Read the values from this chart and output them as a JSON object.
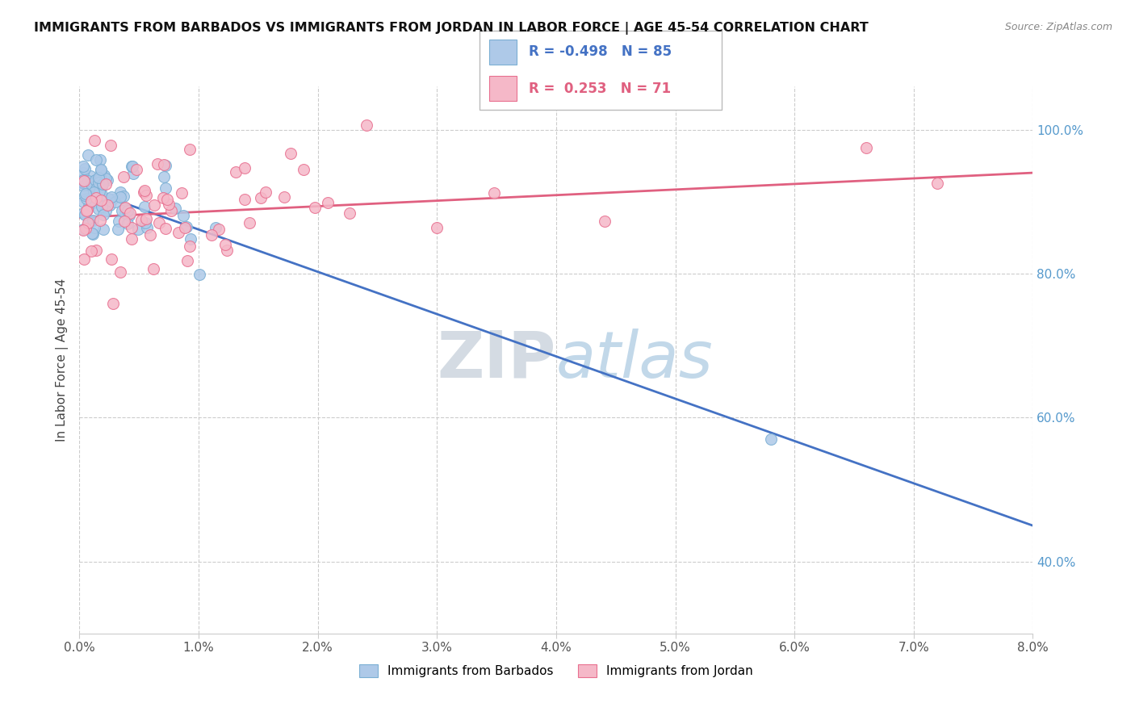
{
  "title": "IMMIGRANTS FROM BARBADOS VS IMMIGRANTS FROM JORDAN IN LABOR FORCE | AGE 45-54 CORRELATION CHART",
  "source": "Source: ZipAtlas.com",
  "ylabel": "In Labor Force | Age 45-54",
  "yticks": [
    "40.0%",
    "60.0%",
    "80.0%",
    "100.0%"
  ],
  "ytick_values": [
    0.4,
    0.6,
    0.8,
    1.0
  ],
  "xmin": 0.0,
  "xmax": 0.08,
  "ymin": 0.3,
  "ymax": 1.06,
  "barbados_color": "#aec9e8",
  "barbados_edge_color": "#7bafd4",
  "jordan_color": "#f5b8c8",
  "jordan_edge_color": "#e87090",
  "barbados_line_color": "#4472c4",
  "jordan_line_color": "#e06080",
  "legend_R_barbados": "-0.498",
  "legend_N_barbados": "85",
  "legend_R_jordan": "0.253",
  "legend_N_jordan": "71",
  "watermark": "ZIPatlas",
  "barbados_R": -0.498,
  "jordan_R": 0.253,
  "ytick_color": "#5599cc",
  "barbados_intercept": 0.92,
  "barbados_slope": -5.875,
  "jordan_intercept": 0.878,
  "jordan_slope": 0.775
}
